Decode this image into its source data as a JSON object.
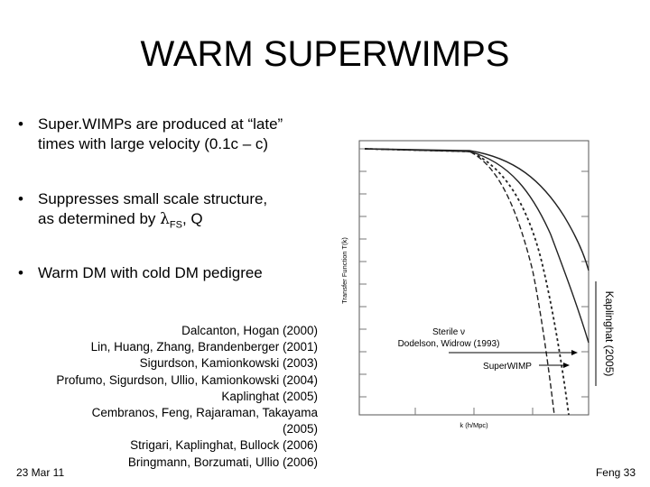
{
  "title": "WARM SUPERWIMPS",
  "bullets": [
    {
      "lines": [
        "Super.WIMPs are produced at “late”",
        "times with large velocity (0.1c – c)"
      ]
    },
    {
      "lines": [
        "Suppresses small scale structure,"
      ],
      "line2": {
        "before": "as determined by ",
        "symbol": "λ",
        "subscript": "FS",
        "after": ", Q"
      }
    },
    {
      "lines": [
        "Warm DM with cold DM pedigree"
      ]
    }
  ],
  "references": [
    "Dalcanton, Hogan (2000)",
    "Lin, Huang, Zhang, Brandenberger (2001)",
    "Sigurdson, Kamionkowski (2003)",
    "Profumo, Sigurdson, Ullio, Kamionkowski (2004)",
    "Kaplinghat (2005)",
    "Cembranos, Feng, Rajaraman, Takayama",
    "(2005)",
    "Strigari, Kaplinghat, Bullock (2006)",
    "Bringmann, Borzumati, Ullio (2006)"
  ],
  "figure": {
    "y_label": "Transfer Function T(k)",
    "x_label": "k (h/Mpc)",
    "annotations": [
      "Sterile ν",
      "Dodelson, Widrow (1993)",
      "SuperWIMP",
      "Kaplinghat (2005)"
    ]
  },
  "footer": {
    "date": "23 Mar 11",
    "page": "Feng 33"
  }
}
